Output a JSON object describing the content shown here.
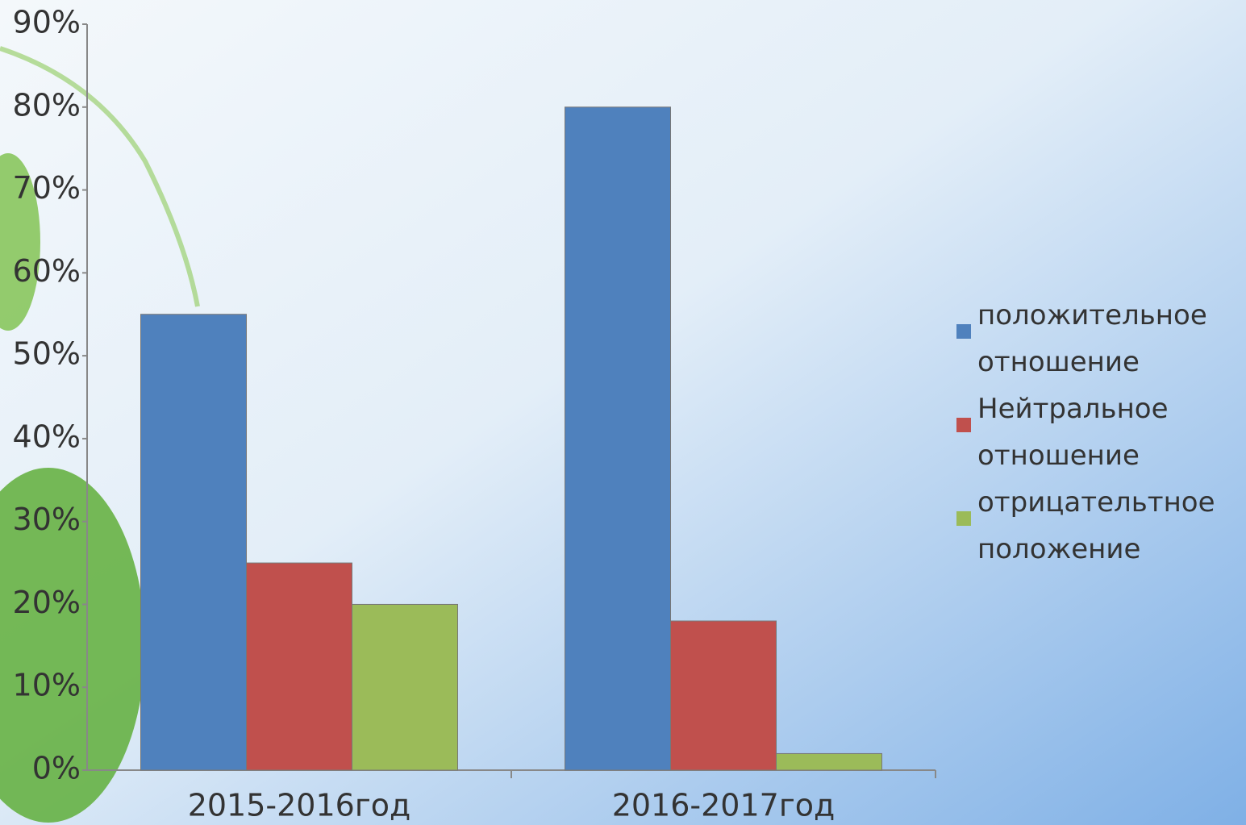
{
  "chart_data": {
    "type": "bar",
    "categories": [
      "2015-2016год",
      "2016-2017год"
    ],
    "series": [
      {
        "name": "положительное отношение",
        "color": "#4f81bd",
        "values": [
          55,
          80
        ]
      },
      {
        "name": "Нейтральное отношение",
        "color": "#c0504d",
        "values": [
          25,
          18
        ]
      },
      {
        "name": "отрицательтное положение",
        "color": "#9bbb59",
        "values": [
          20,
          2
        ]
      }
    ],
    "ylim": [
      0,
      90
    ],
    "yticks": [
      {
        "value": 0,
        "label": "0%"
      },
      {
        "value": 10,
        "label": "10%"
      },
      {
        "value": 20,
        "label": "20%"
      },
      {
        "value": 30,
        "label": "30%"
      },
      {
        "value": 40,
        "label": "40%"
      },
      {
        "value": 50,
        "label": "50%"
      },
      {
        "value": 60,
        "label": "60%"
      },
      {
        "value": 70,
        "label": "70%"
      },
      {
        "value": 80,
        "label": "80%"
      },
      {
        "value": 90,
        "label": "90%"
      }
    ],
    "legend": "right"
  }
}
